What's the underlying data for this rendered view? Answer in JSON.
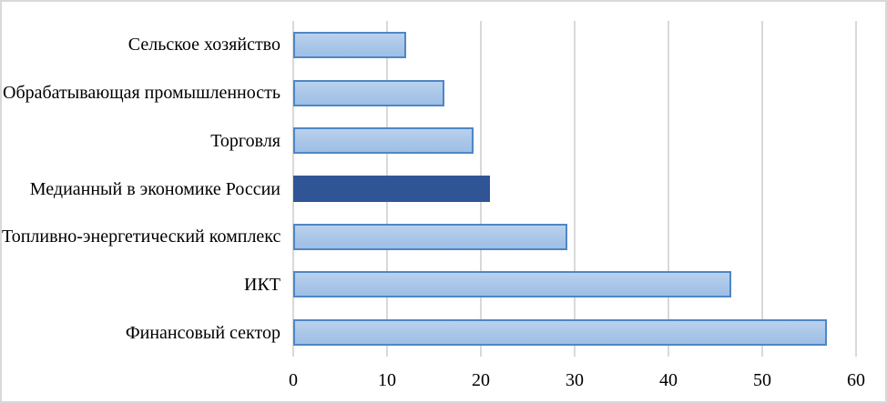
{
  "chart_data": {
    "type": "bar",
    "orientation": "horizontal",
    "title": "",
    "xlabel": "",
    "ylabel": "",
    "categories": [
      "Сельское хозяйство",
      "Обрабатывающая промышленность",
      "Торговля",
      "Медианный в экономике России",
      "Топливно-энергетический комплекс",
      "ИКТ",
      "Финансовый сектор"
    ],
    "values": [
      12.0,
      16.1,
      19.2,
      21.0,
      29.2,
      46.7,
      56.9
    ],
    "highlighted_index": 3,
    "highlighted_category": "Медианный в экономике России",
    "xlim": [
      0,
      60
    ],
    "x_ticks": [
      0,
      10,
      20,
      30,
      40,
      50,
      60
    ],
    "grid": "vertical-only",
    "legend": "none",
    "colors": {
      "bar_fill_light_top": "#BAD1ED",
      "bar_fill_light_bottom": "#9DBFE5",
      "bar_border_light": "#4E87C5",
      "bar_highlight": "#2F5597",
      "gridline": "#D9D9D9",
      "frame_border": "#D9D9D9",
      "text": "#000000",
      "background": "#FFFFFF"
    }
  }
}
